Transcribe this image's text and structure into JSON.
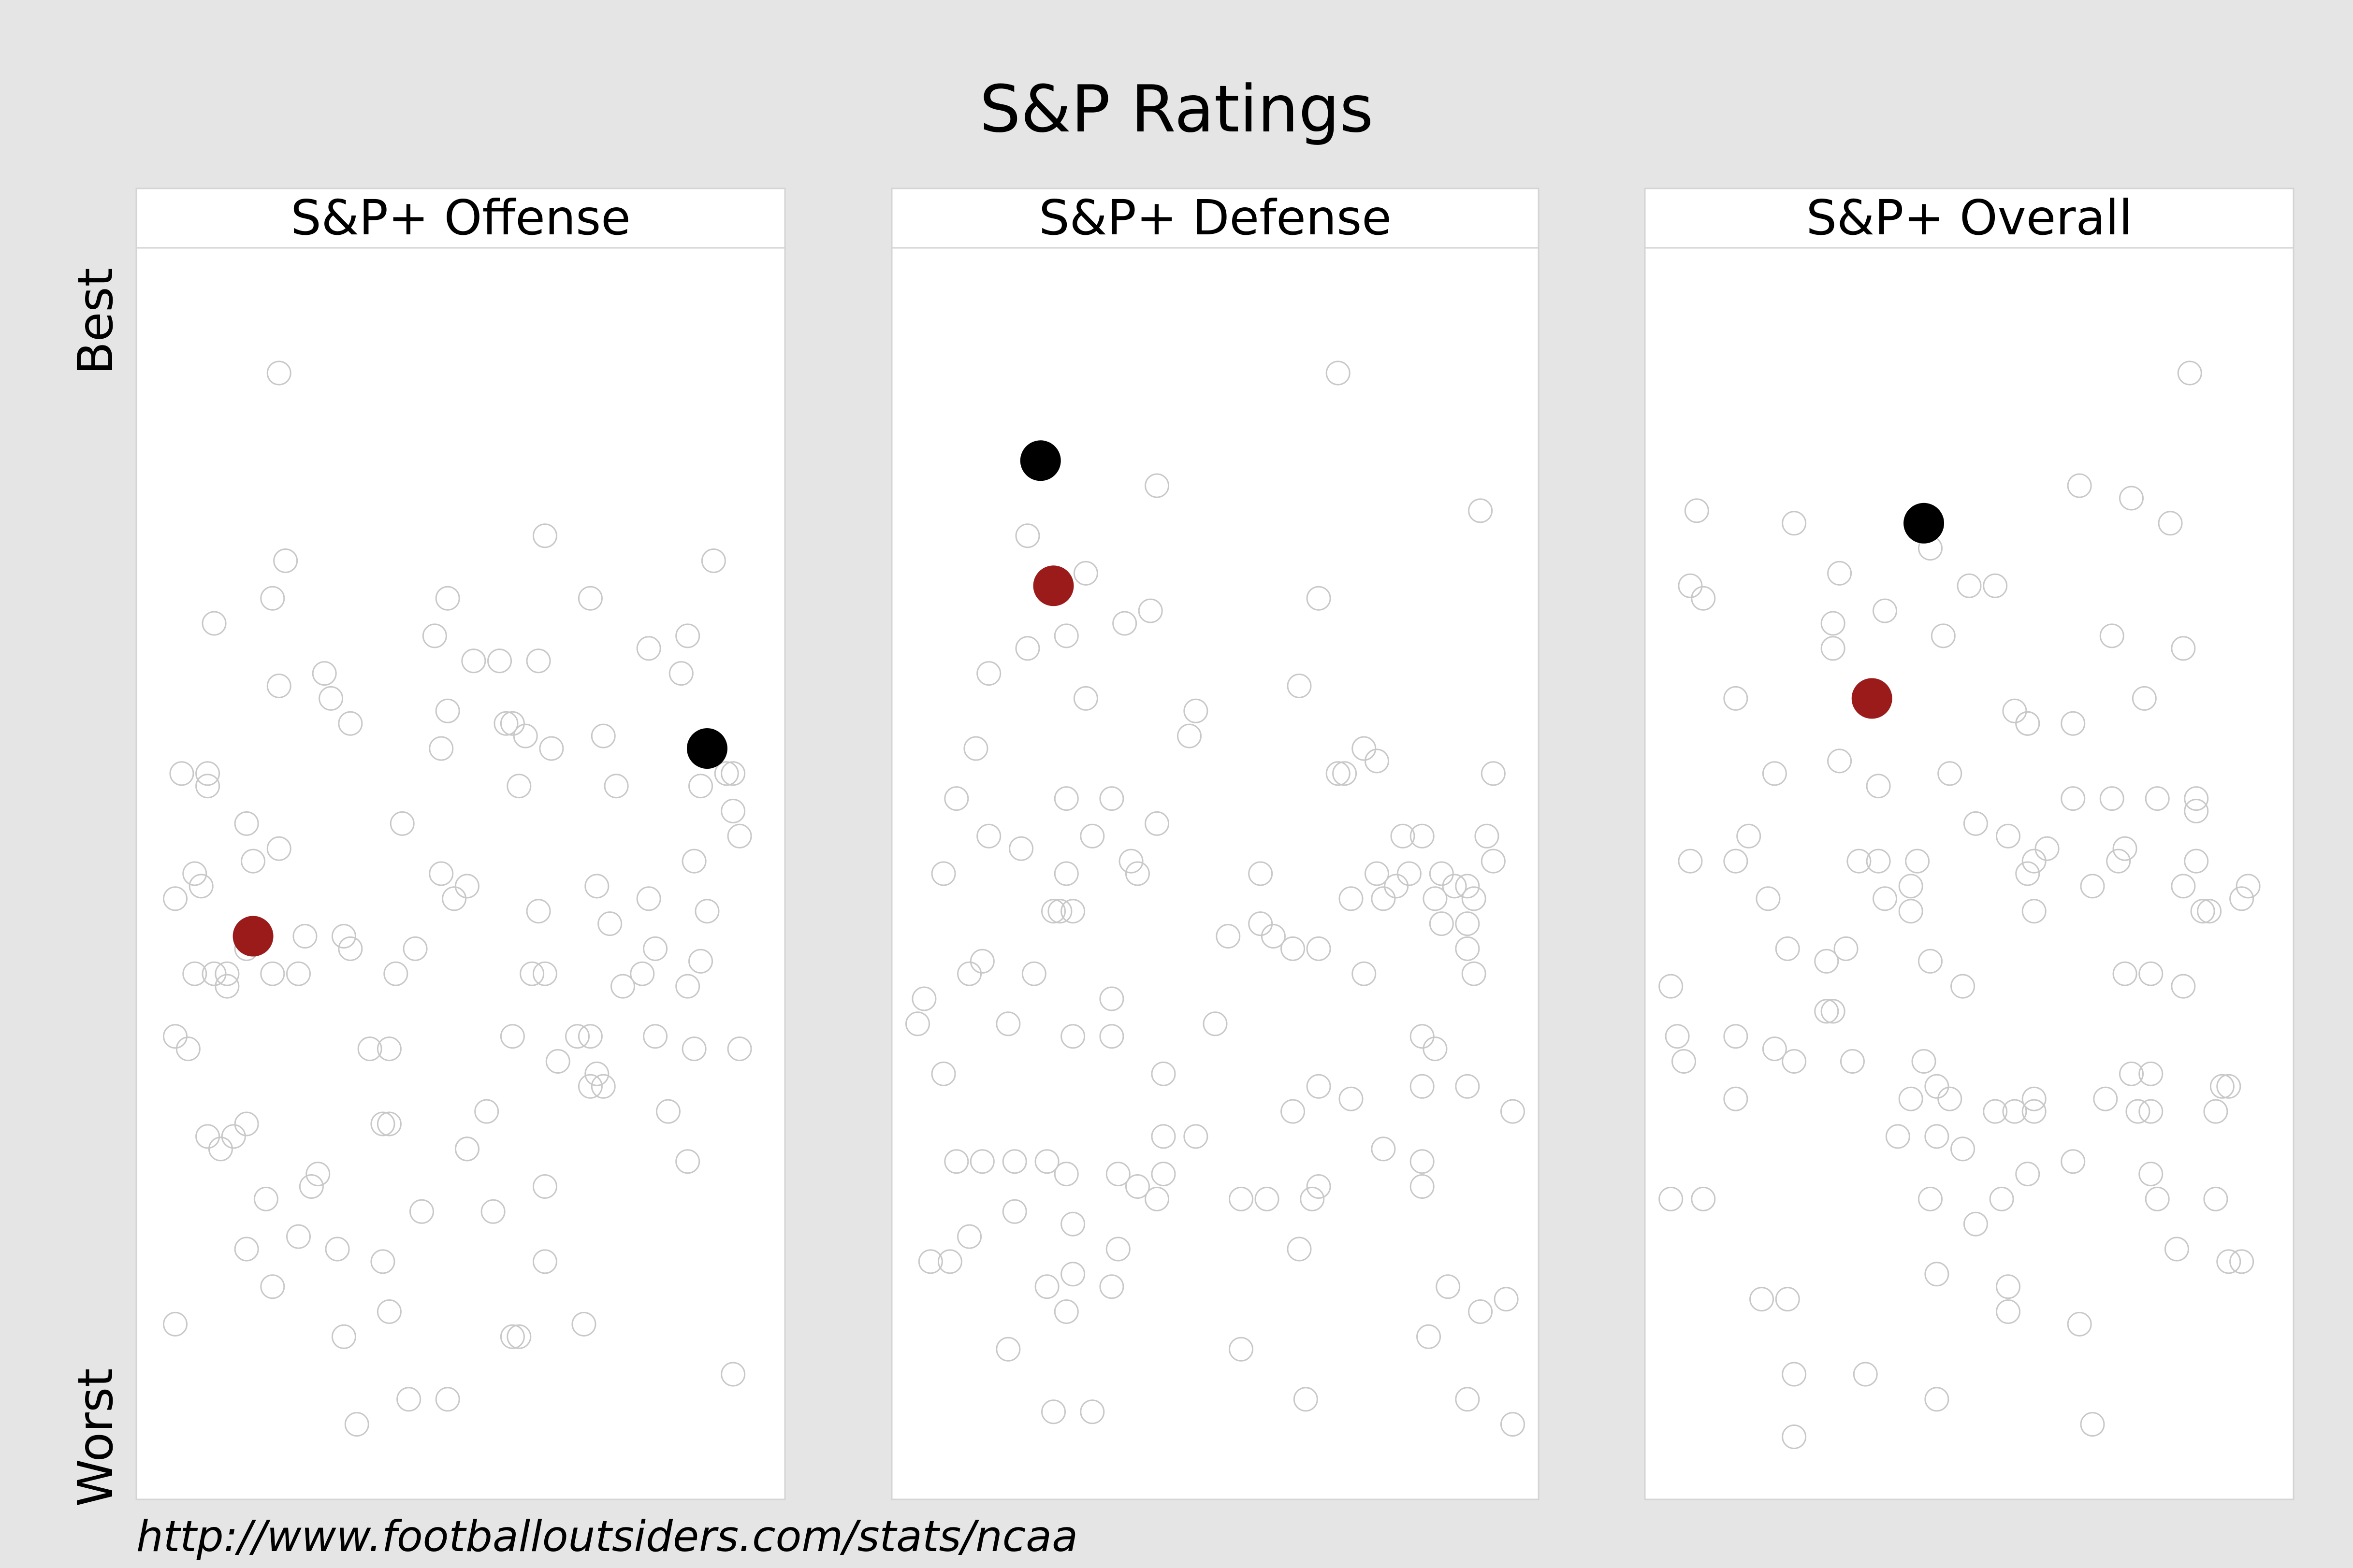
{
  "title": "S&P Ratings",
  "y_axis": {
    "top_label": "Best",
    "bottom_label": "Worst"
  },
  "source": "http://www.footballoutsiders.com/stats/ncaa",
  "colors": {
    "highlight_1": "#000000",
    "highlight_2": "#9b1b1b",
    "others": "#c8c8c8",
    "background": "#e5e5e5"
  },
  "chart_data": [
    {
      "type": "scatter",
      "title": "S&P+ Offense",
      "ylim": [
        "Worst",
        "Best"
      ],
      "others": [
        [
          0.22,
          0.1
        ],
        [
          0.63,
          0.23
        ],
        [
          0.23,
          0.25
        ],
        [
          0.89,
          0.25
        ],
        [
          0.21,
          0.28
        ],
        [
          0.48,
          0.28
        ],
        [
          0.7,
          0.28
        ],
        [
          0.12,
          0.3
        ],
        [
          0.85,
          0.31
        ],
        [
          0.46,
          0.31
        ],
        [
          0.79,
          0.32
        ],
        [
          0.52,
          0.33
        ],
        [
          0.56,
          0.33
        ],
        [
          0.62,
          0.33
        ],
        [
          0.84,
          0.34
        ],
        [
          0.29,
          0.34
        ],
        [
          0.22,
          0.35
        ],
        [
          0.3,
          0.36
        ],
        [
          0.48,
          0.37
        ],
        [
          0.57,
          0.38
        ],
        [
          0.58,
          0.38
        ],
        [
          0.33,
          0.38
        ],
        [
          0.6,
          0.39
        ],
        [
          0.72,
          0.39
        ],
        [
          0.47,
          0.4
        ],
        [
          0.64,
          0.4
        ],
        [
          0.07,
          0.42
        ],
        [
          0.11,
          0.42
        ],
        [
          0.91,
          0.42
        ],
        [
          0.92,
          0.42
        ],
        [
          0.11,
          0.43
        ],
        [
          0.59,
          0.43
        ],
        [
          0.74,
          0.43
        ],
        [
          0.87,
          0.43
        ],
        [
          0.92,
          0.45
        ],
        [
          0.41,
          0.46
        ],
        [
          0.17,
          0.46
        ],
        [
          0.93,
          0.47
        ],
        [
          0.22,
          0.48
        ],
        [
          0.18,
          0.49
        ],
        [
          0.86,
          0.49
        ],
        [
          0.47,
          0.5
        ],
        [
          0.09,
          0.5
        ],
        [
          0.1,
          0.51
        ],
        [
          0.71,
          0.51
        ],
        [
          0.49,
          0.52
        ],
        [
          0.51,
          0.51
        ],
        [
          0.06,
          0.52
        ],
        [
          0.79,
          0.52
        ],
        [
          0.88,
          0.53
        ],
        [
          0.62,
          0.53
        ],
        [
          0.73,
          0.54
        ],
        [
          0.26,
          0.55
        ],
        [
          0.32,
          0.55
        ],
        [
          0.8,
          0.56
        ],
        [
          0.43,
          0.56
        ],
        [
          0.33,
          0.56
        ],
        [
          0.17,
          0.56
        ],
        [
          0.61,
          0.58
        ],
        [
          0.63,
          0.58
        ],
        [
          0.4,
          0.58
        ],
        [
          0.78,
          0.58
        ],
        [
          0.87,
          0.57
        ],
        [
          0.09,
          0.58
        ],
        [
          0.12,
          0.58
        ],
        [
          0.14,
          0.58
        ],
        [
          0.21,
          0.58
        ],
        [
          0.25,
          0.58
        ],
        [
          0.14,
          0.59
        ],
        [
          0.85,
          0.59
        ],
        [
          0.75,
          0.59
        ],
        [
          0.06,
          0.63
        ],
        [
          0.08,
          0.64
        ],
        [
          0.58,
          0.63
        ],
        [
          0.68,
          0.63
        ],
        [
          0.7,
          0.63
        ],
        [
          0.8,
          0.63
        ],
        [
          0.86,
          0.64
        ],
        [
          0.93,
          0.64
        ],
        [
          0.36,
          0.64
        ],
        [
          0.39,
          0.64
        ],
        [
          0.65,
          0.65
        ],
        [
          0.71,
          0.66
        ],
        [
          0.72,
          0.67
        ],
        [
          0.7,
          0.67
        ],
        [
          0.54,
          0.69
        ],
        [
          0.82,
          0.69
        ],
        [
          0.17,
          0.7
        ],
        [
          0.38,
          0.7
        ],
        [
          0.39,
          0.7
        ],
        [
          0.11,
          0.71
        ],
        [
          0.15,
          0.71
        ],
        [
          0.13,
          0.72
        ],
        [
          0.51,
          0.72
        ],
        [
          0.51,
          0.72
        ],
        [
          0.85,
          0.73
        ],
        [
          0.28,
          0.74
        ],
        [
          0.27,
          0.75
        ],
        [
          0.63,
          0.75
        ],
        [
          0.2,
          0.76
        ],
        [
          0.44,
          0.77
        ],
        [
          0.55,
          0.77
        ],
        [
          0.25,
          0.79
        ],
        [
          0.17,
          0.8
        ],
        [
          0.31,
          0.8
        ],
        [
          0.38,
          0.81
        ],
        [
          0.63,
          0.81
        ],
        [
          0.21,
          0.83
        ],
        [
          0.06,
          0.86
        ],
        [
          0.39,
          0.85
        ],
        [
          0.69,
          0.86
        ],
        [
          0.32,
          0.87
        ],
        [
          0.59,
          0.87
        ],
        [
          0.58,
          0.87
        ],
        [
          0.92,
          0.9
        ],
        [
          0.42,
          0.92
        ],
        [
          0.48,
          0.92
        ],
        [
          0.34,
          0.94
        ]
      ],
      "highlight_1": [
        0.88,
        0.4
      ],
      "highlight_2": [
        0.18,
        0.55
      ]
    },
    {
      "type": "scatter",
      "title": "S&P+ Defense",
      "ylim": [
        "Worst",
        "Best"
      ],
      "others": [
        [
          0.69,
          0.1
        ],
        [
          0.91,
          0.21
        ],
        [
          0.21,
          0.23
        ],
        [
          0.41,
          0.19
        ],
        [
          0.3,
          0.26
        ],
        [
          0.66,
          0.28
        ],
        [
          0.4,
          0.29
        ],
        [
          0.36,
          0.3
        ],
        [
          0.27,
          0.31
        ],
        [
          0.21,
          0.32
        ],
        [
          0.15,
          0.34
        ],
        [
          0.63,
          0.35
        ],
        [
          0.3,
          0.36
        ],
        [
          0.47,
          0.37
        ],
        [
          0.46,
          0.39
        ],
        [
          0.73,
          0.4
        ],
        [
          0.7,
          0.42
        ],
        [
          0.75,
          0.41
        ],
        [
          0.93,
          0.42
        ],
        [
          0.69,
          0.42
        ],
        [
          0.13,
          0.4
        ],
        [
          0.1,
          0.44
        ],
        [
          0.27,
          0.44
        ],
        [
          0.34,
          0.44
        ],
        [
          0.41,
          0.46
        ],
        [
          0.15,
          0.47
        ],
        [
          0.31,
          0.47
        ],
        [
          0.2,
          0.48
        ],
        [
          0.79,
          0.47
        ],
        [
          0.92,
          0.47
        ],
        [
          0.82,
          0.47
        ],
        [
          0.93,
          0.49
        ],
        [
          0.27,
          0.5
        ],
        [
          0.37,
          0.49
        ],
        [
          0.38,
          0.5
        ],
        [
          0.57,
          0.5
        ],
        [
          0.75,
          0.5
        ],
        [
          0.8,
          0.5
        ],
        [
          0.85,
          0.5
        ],
        [
          0.78,
          0.51
        ],
        [
          0.87,
          0.51
        ],
        [
          0.89,
          0.51
        ],
        [
          0.9,
          0.52
        ],
        [
          0.08,
          0.5
        ],
        [
          0.71,
          0.52
        ],
        [
          0.76,
          0.52
        ],
        [
          0.84,
          0.52
        ],
        [
          0.25,
          0.53
        ],
        [
          0.26,
          0.53
        ],
        [
          0.28,
          0.53
        ],
        [
          0.57,
          0.54
        ],
        [
          0.85,
          0.54
        ],
        [
          0.89,
          0.54
        ],
        [
          0.52,
          0.55
        ],
        [
          0.59,
          0.55
        ],
        [
          0.62,
          0.56
        ],
        [
          0.14,
          0.57
        ],
        [
          0.66,
          0.56
        ],
        [
          0.89,
          0.56
        ],
        [
          0.22,
          0.58
        ],
        [
          0.12,
          0.58
        ],
        [
          0.73,
          0.58
        ],
        [
          0.9,
          0.58
        ],
        [
          0.34,
          0.6
        ],
        [
          0.05,
          0.6
        ],
        [
          0.18,
          0.62
        ],
        [
          0.04,
          0.62
        ],
        [
          0.5,
          0.62
        ],
        [
          0.82,
          0.63
        ],
        [
          0.28,
          0.63
        ],
        [
          0.34,
          0.63
        ],
        [
          0.08,
          0.66
        ],
        [
          0.84,
          0.64
        ],
        [
          0.42,
          0.66
        ],
        [
          0.66,
          0.67
        ],
        [
          0.82,
          0.67
        ],
        [
          0.71,
          0.68
        ],
        [
          0.89,
          0.67
        ],
        [
          0.62,
          0.69
        ],
        [
          0.96,
          0.69
        ],
        [
          0.42,
          0.71
        ],
        [
          0.47,
          0.71
        ],
        [
          0.76,
          0.72
        ],
        [
          0.1,
          0.73
        ],
        [
          0.14,
          0.73
        ],
        [
          0.19,
          0.73
        ],
        [
          0.24,
          0.73
        ],
        [
          0.27,
          0.74
        ],
        [
          0.82,
          0.73
        ],
        [
          0.42,
          0.74
        ],
        [
          0.35,
          0.74
        ],
        [
          0.82,
          0.75
        ],
        [
          0.41,
          0.76
        ],
        [
          0.38,
          0.75
        ],
        [
          0.54,
          0.76
        ],
        [
          0.58,
          0.76
        ],
        [
          0.65,
          0.76
        ],
        [
          0.66,
          0.75
        ],
        [
          0.19,
          0.77
        ],
        [
          0.28,
          0.78
        ],
        [
          0.12,
          0.79
        ],
        [
          0.06,
          0.81
        ],
        [
          0.09,
          0.81
        ],
        [
          0.35,
          0.8
        ],
        [
          0.63,
          0.8
        ],
        [
          0.28,
          0.82
        ],
        [
          0.24,
          0.83
        ],
        [
          0.34,
          0.83
        ],
        [
          0.86,
          0.83
        ],
        [
          0.95,
          0.84
        ],
        [
          0.91,
          0.85
        ],
        [
          0.83,
          0.87
        ],
        [
          0.27,
          0.85
        ],
        [
          0.18,
          0.88
        ],
        [
          0.54,
          0.88
        ],
        [
          0.89,
          0.92
        ],
        [
          0.31,
          0.93
        ],
        [
          0.64,
          0.92
        ],
        [
          0.25,
          0.93
        ],
        [
          0.96,
          0.94
        ]
      ],
      "highlight_1": [
        0.23,
        0.17
      ],
      "highlight_2": [
        0.25,
        0.27
      ]
    },
    {
      "type": "scatter",
      "title": "S&P+ Overall",
      "ylim": [
        "Worst",
        "Best"
      ],
      "others": [
        [
          0.84,
          0.1
        ],
        [
          0.67,
          0.19
        ],
        [
          0.75,
          0.2
        ],
        [
          0.08,
          0.21
        ],
        [
          0.23,
          0.22
        ],
        [
          0.81,
          0.22
        ],
        [
          0.44,
          0.24
        ],
        [
          0.3,
          0.26
        ],
        [
          0.07,
          0.27
        ],
        [
          0.09,
          0.28
        ],
        [
          0.5,
          0.27
        ],
        [
          0.54,
          0.27
        ],
        [
          0.37,
          0.29
        ],
        [
          0.29,
          0.3
        ],
        [
          0.46,
          0.31
        ],
        [
          0.72,
          0.31
        ],
        [
          0.29,
          0.32
        ],
        [
          0.83,
          0.32
        ],
        [
          0.14,
          0.36
        ],
        [
          0.77,
          0.36
        ],
        [
          0.57,
          0.37
        ],
        [
          0.59,
          0.38
        ],
        [
          0.59,
          0.38
        ],
        [
          0.66,
          0.38
        ],
        [
          0.3,
          0.41
        ],
        [
          0.2,
          0.42
        ],
        [
          0.47,
          0.42
        ],
        [
          0.36,
          0.43
        ],
        [
          0.66,
          0.44
        ],
        [
          0.72,
          0.44
        ],
        [
          0.79,
          0.44
        ],
        [
          0.85,
          0.44
        ],
        [
          0.85,
          0.45
        ],
        [
          0.51,
          0.46
        ],
        [
          0.56,
          0.47
        ],
        [
          0.16,
          0.47
        ],
        [
          0.62,
          0.48
        ],
        [
          0.74,
          0.48
        ],
        [
          0.14,
          0.49
        ],
        [
          0.07,
          0.49
        ],
        [
          0.6,
          0.49
        ],
        [
          0.36,
          0.49
        ],
        [
          0.33,
          0.49
        ],
        [
          0.42,
          0.49
        ],
        [
          0.73,
          0.49
        ],
        [
          0.85,
          0.49
        ],
        [
          0.59,
          0.5
        ],
        [
          0.69,
          0.51
        ],
        [
          0.83,
          0.51
        ],
        [
          0.41,
          0.51
        ],
        [
          0.93,
          0.51
        ],
        [
          0.92,
          0.52
        ],
        [
          0.19,
          0.52
        ],
        [
          0.37,
          0.52
        ],
        [
          0.41,
          0.53
        ],
        [
          0.6,
          0.53
        ],
        [
          0.86,
          0.53
        ],
        [
          0.87,
          0.53
        ],
        [
          0.22,
          0.56
        ],
        [
          0.31,
          0.56
        ],
        [
          0.44,
          0.57
        ],
        [
          0.28,
          0.57
        ],
        [
          0.74,
          0.58
        ],
        [
          0.78,
          0.58
        ],
        [
          0.49,
          0.59
        ],
        [
          0.83,
          0.59
        ],
        [
          0.04,
          0.59
        ],
        [
          0.28,
          0.61
        ],
        [
          0.29,
          0.61
        ],
        [
          0.05,
          0.63
        ],
        [
          0.14,
          0.63
        ],
        [
          0.2,
          0.64
        ],
        [
          0.23,
          0.65
        ],
        [
          0.32,
          0.65
        ],
        [
          0.06,
          0.65
        ],
        [
          0.43,
          0.65
        ],
        [
          0.75,
          0.66
        ],
        [
          0.78,
          0.66
        ],
        [
          0.89,
          0.67
        ],
        [
          0.9,
          0.67
        ],
        [
          0.45,
          0.67
        ],
        [
          0.47,
          0.68
        ],
        [
          0.41,
          0.68
        ],
        [
          0.6,
          0.68
        ],
        [
          0.6,
          0.69
        ],
        [
          0.71,
          0.68
        ],
        [
          0.57,
          0.69
        ],
        [
          0.76,
          0.69
        ],
        [
          0.78,
          0.69
        ],
        [
          0.54,
          0.69
        ],
        [
          0.88,
          0.69
        ],
        [
          0.14,
          0.68
        ],
        [
          0.39,
          0.71
        ],
        [
          0.45,
          0.71
        ],
        [
          0.66,
          0.73
        ],
        [
          0.78,
          0.74
        ],
        [
          0.59,
          0.74
        ],
        [
          0.49,
          0.72
        ],
        [
          0.04,
          0.76
        ],
        [
          0.09,
          0.76
        ],
        [
          0.44,
          0.76
        ],
        [
          0.55,
          0.76
        ],
        [
          0.79,
          0.76
        ],
        [
          0.88,
          0.76
        ],
        [
          0.51,
          0.78
        ],
        [
          0.82,
          0.8
        ],
        [
          0.9,
          0.81
        ],
        [
          0.92,
          0.81
        ],
        [
          0.45,
          0.82
        ],
        [
          0.56,
          0.83
        ],
        [
          0.18,
          0.84
        ],
        [
          0.22,
          0.84
        ],
        [
          0.56,
          0.85
        ],
        [
          0.67,
          0.86
        ],
        [
          0.34,
          0.9
        ],
        [
          0.23,
          0.9
        ],
        [
          0.45,
          0.92
        ],
        [
          0.69,
          0.94
        ],
        [
          0.23,
          0.95
        ]
      ],
      "highlight_1": [
        0.43,
        0.22
      ],
      "highlight_2": [
        0.35,
        0.36
      ]
    }
  ]
}
